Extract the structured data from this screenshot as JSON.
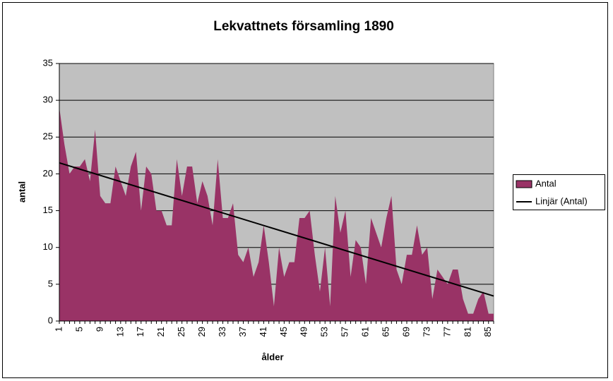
{
  "chart_data": {
    "type": "area",
    "title": "Lekvattnets församling 1890",
    "x_label": "ålder",
    "y_label": "antal",
    "categories": [
      1,
      null,
      null,
      null,
      5,
      null,
      null,
      null,
      9,
      null,
      null,
      null,
      13,
      null,
      null,
      null,
      17,
      null,
      null,
      null,
      21,
      null,
      null,
      null,
      25,
      null,
      null,
      null,
      29,
      null,
      null,
      null,
      33,
      null,
      null,
      null,
      37,
      null,
      null,
      null,
      41,
      null,
      null,
      null,
      45,
      null,
      null,
      null,
      49,
      null,
      null,
      null,
      53,
      null,
      null,
      null,
      57,
      null,
      null,
      null,
      61,
      null,
      null,
      null,
      65,
      null,
      null,
      null,
      69,
      null,
      null,
      null,
      73,
      null,
      null,
      null,
      77,
      null,
      null,
      null,
      81,
      null,
      null,
      null,
      85,
      null
    ],
    "series": [
      {
        "name": "Antal",
        "color": "#993366",
        "values": [
          29,
          24,
          20,
          21,
          21,
          22,
          19,
          26,
          17,
          16,
          16,
          21,
          19,
          17,
          21,
          23,
          15,
          21,
          20,
          15,
          15,
          13,
          13,
          22,
          17,
          21,
          21,
          16,
          19,
          17,
          13,
          22,
          14,
          14,
          16,
          9,
          8,
          10,
          6,
          8,
          13,
          8,
          2,
          10,
          6,
          8,
          8,
          14,
          14,
          15,
          9,
          4,
          10,
          2,
          17,
          12,
          15,
          6,
          11,
          10,
          5,
          14,
          12,
          10,
          14,
          17,
          7,
          5,
          9,
          9,
          13,
          9,
          10,
          3,
          7,
          6,
          5,
          7,
          7,
          3,
          1,
          1,
          3,
          4,
          1,
          1
        ]
      }
    ],
    "trendline": {
      "name": "Linjär (Antal)",
      "color": "#000000",
      "x": [
        1,
        86
      ],
      "values": [
        21.5,
        3.4
      ]
    },
    "ylim": [
      0,
      35
    ],
    "yticks": [
      0,
      5,
      10,
      15,
      20,
      25,
      30,
      35
    ],
    "grid": true,
    "legend": "right"
  }
}
